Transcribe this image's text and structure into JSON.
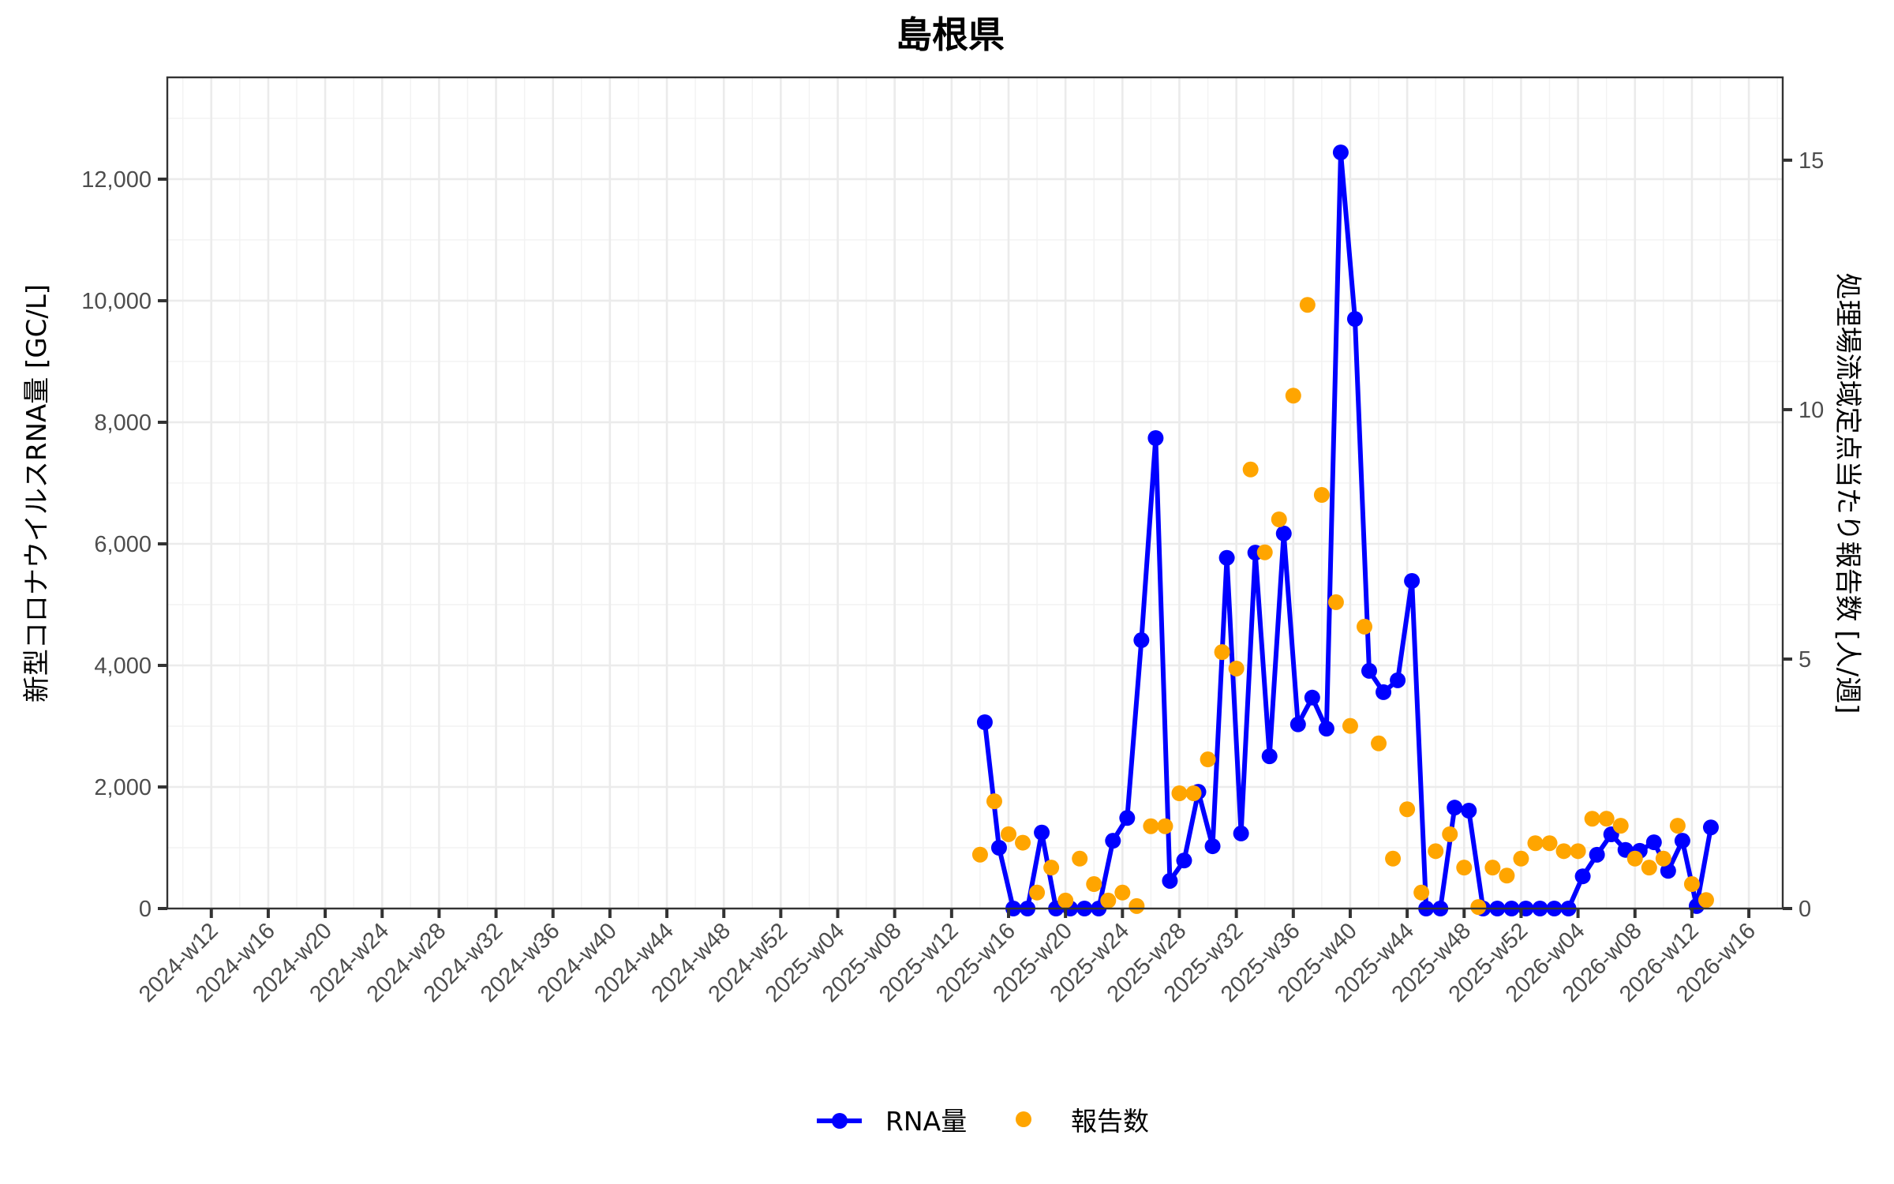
{
  "title": "島根県",
  "y_left_title": "新型コロナウイルスRNA量 [GC/L]",
  "y_right_title": "処理場流域定点当たり報告数 [人/週]",
  "legend": [
    {
      "label": "RNA量",
      "color": "#0000ff",
      "kind": "line-point"
    },
    {
      "label": "報告数",
      "color": "#ffa500",
      "kind": "point"
    }
  ],
  "colors": {
    "rna": "#0000ff",
    "reports": "#ffa500",
    "grid": "#ebebeb",
    "axis": "#333333",
    "tick_text": "#4d4d4d"
  },
  "chart_data": {
    "type": "line",
    "title": "島根県",
    "xlabel": "",
    "ylabel": "新型コロナウイルスRNA量 [GC/L]",
    "y2label": "処理場流域定点当たり報告数 [人/週]",
    "ylim": [
      0,
      13675
    ],
    "y2lim": [
      0,
      16.66
    ],
    "yticks": [
      0,
      2000,
      4000,
      6000,
      8000,
      10000,
      12000
    ],
    "ytick_labels": [
      "0",
      "2,000",
      "4,000",
      "6,000",
      "8,000",
      "10,000",
      "12,000"
    ],
    "y2ticks": [
      0,
      5,
      10,
      15
    ],
    "y2tick_labels": [
      "0",
      "5",
      "10",
      "15"
    ],
    "xticks": [
      "2024-w12",
      "2024-w16",
      "2024-w20",
      "2024-w24",
      "2024-w28",
      "2024-w32",
      "2024-w36",
      "2024-w40",
      "2024-w44",
      "2024-w48",
      "2024-w52",
      "2025-w04",
      "2025-w08",
      "2025-w12",
      "2025-w16",
      "2025-w20",
      "2025-w24",
      "2025-w28",
      "2025-w32",
      "2025-w36",
      "2025-w40",
      "2025-w44",
      "2025-w48",
      "2025-w52",
      "2026-w04",
      "2026-w08",
      "2026-w12",
      "2026-w16"
    ],
    "grid": true,
    "legend_position": "bottom",
    "x": [
      "2025-w14",
      "2025-w15",
      "2025-w16",
      "2025-w17",
      "2025-w18",
      "2025-w19",
      "2025-w20",
      "2025-w21",
      "2025-w22",
      "2025-w23",
      "2025-w24",
      "2025-w25",
      "2025-w26",
      "2025-w27",
      "2025-w28",
      "2025-w29",
      "2025-w30",
      "2025-w31",
      "2025-w32",
      "2025-w33",
      "2025-w34",
      "2025-w35",
      "2025-w36",
      "2025-w37",
      "2025-w38",
      "2025-w39",
      "2025-w40",
      "2025-w41",
      "2025-w42",
      "2025-w43",
      "2025-w44",
      "2025-w45",
      "2025-w46",
      "2025-w47",
      "2025-w48",
      "2025-w49",
      "2025-w50",
      "2025-w51",
      "2025-w52",
      "2026-w01",
      "2026-w02",
      "2026-w03",
      "2026-w04",
      "2026-w05",
      "2026-w06",
      "2026-w07",
      "2026-w08",
      "2026-w09",
      "2026-w10",
      "2026-w11",
      "2026-w12",
      "2026-w13"
    ],
    "series": [
      {
        "name": "RNA量",
        "axis": "left",
        "style": "line+point",
        "values": [
          3065,
          1000,
          0,
          0,
          1250,
          0,
          0,
          0,
          0,
          1115,
          1490,
          4415,
          7740,
          455,
          790,
          1920,
          1025,
          5770,
          1235,
          5855,
          2505,
          6170,
          3030,
          3470,
          2960,
          12440,
          9700,
          3910,
          3560,
          3755,
          5390,
          0,
          0,
          1660,
          1610,
          0,
          0,
          0,
          0,
          0,
          0,
          0,
          530,
          885,
          1220,
          965,
          950,
          1090,
          620,
          1115,
          40,
          1335
        ]
      },
      {
        "name": "報告数",
        "axis": "right",
        "style": "point",
        "values": [
          1.08,
          2.15,
          1.49,
          1.32,
          0.32,
          0.82,
          0.16,
          1.0,
          0.49,
          0.16,
          0.32,
          0.05,
          1.65,
          1.65,
          2.31,
          2.31,
          2.99,
          5.14,
          4.81,
          8.8,
          7.14,
          7.8,
          10.28,
          12.1,
          8.29,
          6.14,
          3.66,
          5.65,
          3.31,
          1.0,
          1.99,
          0.32,
          1.15,
          1.49,
          0.82,
          0.03,
          0.82,
          0.66,
          1.0,
          1.31,
          1.31,
          1.15,
          1.15,
          1.8,
          1.8,
          1.66,
          1.0,
          0.82,
          1.0,
          1.66,
          0.49,
          0.17
        ]
      }
    ]
  }
}
